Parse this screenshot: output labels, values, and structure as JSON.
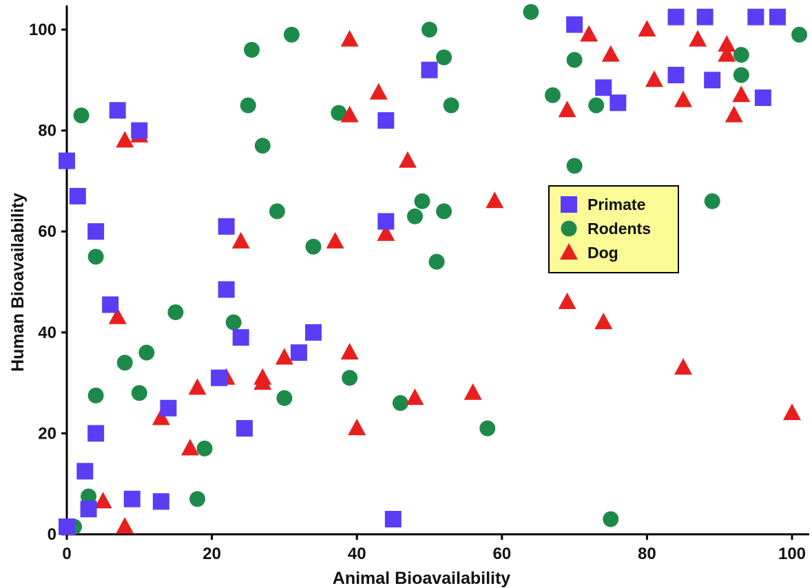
{
  "chart_data": {
    "type": "scatter",
    "xlabel": "Animal Bioavailability",
    "ylabel": "Human Bioavailability",
    "xlim": [
      0,
      100
    ],
    "ylim": [
      0,
      100
    ],
    "xticks": [
      "0",
      "20",
      "40",
      "60",
      "80",
      "100"
    ],
    "yticks": [
      "0",
      "20",
      "40",
      "60",
      "80",
      "100"
    ],
    "grid": false,
    "legend_position": "center-right",
    "series": [
      {
        "name": "Primate",
        "marker": "square",
        "color": "#5b3df5",
        "points": [
          [
            0,
            74
          ],
          [
            1.5,
            67
          ],
          [
            4,
            60
          ],
          [
            7,
            84
          ],
          [
            10,
            80
          ],
          [
            6,
            45.5
          ],
          [
            4,
            20
          ],
          [
            2.5,
            12.5
          ],
          [
            3,
            5
          ],
          [
            0,
            1.5
          ],
          [
            9,
            7
          ],
          [
            13,
            6.5
          ],
          [
            14,
            25
          ],
          [
            21,
            31
          ],
          [
            22,
            61
          ],
          [
            22,
            48.5
          ],
          [
            24,
            39
          ],
          [
            24.5,
            21
          ],
          [
            32,
            36
          ],
          [
            34,
            40
          ],
          [
            44,
            82
          ],
          [
            44,
            62
          ],
          [
            45,
            3
          ],
          [
            50,
            92
          ],
          [
            70,
            101
          ],
          [
            74,
            88.5
          ],
          [
            76,
            85.5
          ],
          [
            84,
            91
          ],
          [
            84,
            102.5
          ],
          [
            88,
            102.5
          ],
          [
            89,
            90
          ],
          [
            95,
            102.5
          ],
          [
            96,
            86.5
          ],
          [
            98,
            102.5
          ]
        ]
      },
      {
        "name": "Rodents",
        "marker": "circle",
        "color": "#1e8a4a",
        "points": [
          [
            2,
            83
          ],
          [
            1,
            1.5
          ],
          [
            3,
            7.5
          ],
          [
            4,
            27.5
          ],
          [
            4,
            55
          ],
          [
            8,
            34
          ],
          [
            10,
            28
          ],
          [
            11,
            36
          ],
          [
            15,
            44
          ],
          [
            18,
            7
          ],
          [
            19,
            17
          ],
          [
            23,
            42
          ],
          [
            25,
            85
          ],
          [
            25.5,
            96
          ],
          [
            27,
            77
          ],
          [
            29,
            64
          ],
          [
            30,
            27
          ],
          [
            31,
            99
          ],
          [
            34,
            57
          ],
          [
            37.5,
            83.5
          ],
          [
            39,
            31
          ],
          [
            46,
            26
          ],
          [
            48,
            63
          ],
          [
            49,
            66
          ],
          [
            50,
            100
          ],
          [
            51,
            54
          ],
          [
            52,
            64
          ],
          [
            52,
            94.5
          ],
          [
            53,
            85
          ],
          [
            58,
            21
          ],
          [
            64,
            103.5
          ],
          [
            67,
            87
          ],
          [
            70,
            94
          ],
          [
            70,
            73
          ],
          [
            73,
            85
          ],
          [
            75,
            3
          ],
          [
            89,
            66
          ],
          [
            93,
            91
          ],
          [
            93,
            95
          ],
          [
            101,
            99
          ]
        ]
      },
      {
        "name": "Dog",
        "marker": "triangle",
        "color": "#e81f1f",
        "points": [
          [
            5,
            6.5
          ],
          [
            7,
            43
          ],
          [
            8,
            78
          ],
          [
            8,
            1.5
          ],
          [
            10,
            79
          ],
          [
            13,
            23
          ],
          [
            17,
            17
          ],
          [
            18,
            29
          ],
          [
            22,
            31
          ],
          [
            24,
            58
          ],
          [
            27,
            30
          ],
          [
            27,
            31
          ],
          [
            30,
            35
          ],
          [
            37,
            58
          ],
          [
            39,
            98
          ],
          [
            39,
            83
          ],
          [
            39,
            36
          ],
          [
            40,
            21
          ],
          [
            43,
            87.5
          ],
          [
            44,
            59.5
          ],
          [
            47,
            74
          ],
          [
            48,
            27
          ],
          [
            56,
            28
          ],
          [
            59,
            66
          ],
          [
            69,
            84
          ],
          [
            69,
            46
          ],
          [
            72,
            99
          ],
          [
            74,
            42
          ],
          [
            75,
            95
          ],
          [
            80,
            100
          ],
          [
            81,
            90
          ],
          [
            85,
            86
          ],
          [
            85,
            33
          ],
          [
            87,
            98
          ],
          [
            91,
            95
          ],
          [
            91,
            97
          ],
          [
            92,
            83
          ],
          [
            93,
            87
          ],
          [
            100,
            24
          ]
        ]
      }
    ]
  }
}
